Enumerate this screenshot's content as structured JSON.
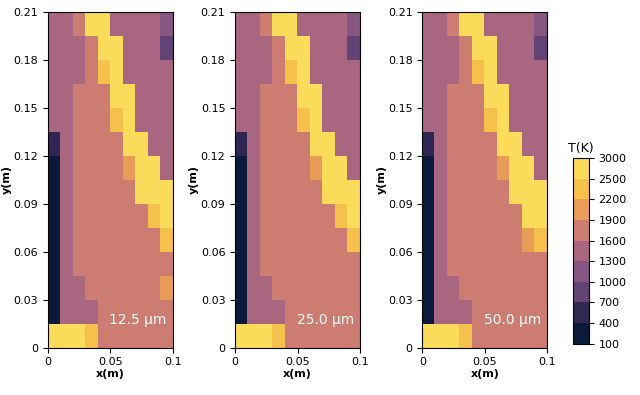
{
  "chart_data": {
    "type": "heatmap",
    "x_label": "x(m)",
    "y_label": "y(m)",
    "xlim": [
      0,
      0.1
    ],
    "ylim": [
      0,
      0.21
    ],
    "xticks": [
      0,
      0.05,
      0.1
    ],
    "yticks": [
      0,
      0.03,
      0.06,
      0.09,
      0.12,
      0.15,
      0.18,
      0.21
    ],
    "colorbar": {
      "title": "T(K)",
      "range": [
        100,
        3000
      ],
      "ticks": [
        100,
        400,
        700,
        1000,
        1300,
        1600,
        1900,
        2200,
        2500,
        3000
      ]
    },
    "panels": [
      {
        "label": "12.5 µm",
        "cells": [
          [
            2800,
            2800,
            2600,
            2200,
            1600,
            1600,
            1600,
            1700,
            1700,
            1700
          ],
          [
            100,
            1500,
            1500,
            1500,
            1600,
            1600,
            1600,
            1700,
            1700,
            1700
          ],
          [
            100,
            1500,
            1500,
            1600,
            1600,
            1600,
            1700,
            1700,
            1700,
            1900
          ],
          [
            100,
            1500,
            1600,
            1600,
            1600,
            1700,
            1700,
            1700,
            1700,
            1700
          ],
          [
            100,
            1500,
            1600,
            1600,
            1700,
            1700,
            1700,
            1700,
            1800,
            2200
          ],
          [
            100,
            1500,
            1600,
            1600,
            1700,
            1700,
            1700,
            1800,
            2400,
            2800
          ],
          [
            100,
            1500,
            1600,
            1600,
            1700,
            1700,
            1800,
            2500,
            2800,
            2700
          ],
          [
            100,
            1500,
            1600,
            1600,
            1700,
            1700,
            2000,
            2800,
            2600,
            1400
          ],
          [
            400,
            1500,
            1600,
            1600,
            1700,
            1800,
            2600,
            2800,
            1400,
            1300
          ],
          [
            1500,
            1500,
            1600,
            1600,
            1700,
            2200,
            2800,
            1400,
            1300,
            1300
          ],
          [
            1500,
            1500,
            1600,
            1600,
            1800,
            2700,
            2600,
            1300,
            1300,
            1300
          ],
          [
            1500,
            1500,
            1500,
            1600,
            2300,
            2800,
            1400,
            1300,
            1300,
            1300
          ],
          [
            1500,
            1500,
            1500,
            1700,
            2800,
            2700,
            1300,
            1300,
            1300,
            900
          ],
          [
            1500,
            1500,
            1600,
            2800,
            2800,
            1400,
            1300,
            1300,
            1300,
            1100
          ]
        ]
      },
      {
        "label": "25.0 µm",
        "cells": [
          [
            2800,
            2800,
            2600,
            2200,
            1600,
            1600,
            1600,
            1700,
            1700,
            1700
          ],
          [
            100,
            1500,
            1500,
            1500,
            1600,
            1600,
            1600,
            1700,
            1700,
            1700
          ],
          [
            100,
            1500,
            1500,
            1600,
            1600,
            1600,
            1700,
            1700,
            1700,
            1800
          ],
          [
            100,
            1500,
            1600,
            1600,
            1600,
            1700,
            1700,
            1700,
            1700,
            1700
          ],
          [
            100,
            1500,
            1600,
            1600,
            1700,
            1700,
            1700,
            1700,
            1800,
            2300
          ],
          [
            100,
            1500,
            1600,
            1600,
            1700,
            1700,
            1700,
            1800,
            2400,
            2800
          ],
          [
            100,
            1500,
            1600,
            1600,
            1700,
            1700,
            1800,
            2500,
            2800,
            2700
          ],
          [
            100,
            1500,
            1600,
            1600,
            1700,
            1700,
            2000,
            2800,
            2600,
            1400
          ],
          [
            400,
            1500,
            1600,
            1600,
            1700,
            1800,
            2600,
            2800,
            1400,
            1300
          ],
          [
            1500,
            1500,
            1600,
            1600,
            1700,
            2200,
            2800,
            1400,
            1300,
            1300
          ],
          [
            1500,
            1500,
            1600,
            1600,
            1800,
            2700,
            2600,
            1300,
            1300,
            1300
          ],
          [
            1500,
            1500,
            1500,
            1600,
            2300,
            2800,
            1400,
            1300,
            1300,
            1300
          ],
          [
            1500,
            1500,
            1500,
            1700,
            2800,
            2700,
            1300,
            1300,
            1300,
            900
          ],
          [
            1500,
            1500,
            1600,
            2800,
            2800,
            1400,
            1300,
            1300,
            1300,
            1100
          ]
        ]
      },
      {
        "label": "50.0 µm",
        "cells": [
          [
            2800,
            2800,
            2600,
            2200,
            1600,
            1600,
            1600,
            1700,
            1700,
            1700
          ],
          [
            100,
            1500,
            1500,
            1500,
            1600,
            1600,
            1600,
            1700,
            1700,
            1700
          ],
          [
            100,
            1500,
            1500,
            1600,
            1600,
            1600,
            1700,
            1700,
            1700,
            1800
          ],
          [
            100,
            1500,
            1600,
            1600,
            1600,
            1700,
            1700,
            1700,
            1700,
            1700
          ],
          [
            100,
            1500,
            1600,
            1600,
            1700,
            1700,
            1700,
            1700,
            1900,
            2400
          ],
          [
            100,
            1500,
            1600,
            1600,
            1700,
            1700,
            1700,
            1800,
            2500,
            2800
          ],
          [
            100,
            1500,
            1600,
            1600,
            1700,
            1700,
            1800,
            2500,
            2800,
            2600
          ],
          [
            100,
            1500,
            1600,
            1600,
            1700,
            1700,
            2000,
            2800,
            2600,
            1400
          ],
          [
            400,
            1500,
            1600,
            1600,
            1700,
            1800,
            2600,
            2800,
            1400,
            1300
          ],
          [
            1500,
            1500,
            1600,
            1600,
            1700,
            2200,
            2800,
            1400,
            1300,
            1300
          ],
          [
            1500,
            1500,
            1600,
            1600,
            1800,
            2700,
            2600,
            1300,
            1300,
            1300
          ],
          [
            1500,
            1500,
            1500,
            1600,
            2300,
            2800,
            1400,
            1300,
            1300,
            1300
          ],
          [
            1500,
            1500,
            1500,
            1700,
            2800,
            2700,
            1300,
            1300,
            1300,
            900
          ],
          [
            1500,
            1500,
            1600,
            2800,
            2800,
            1400,
            1300,
            1300,
            1300,
            1100
          ]
        ]
      }
    ]
  }
}
